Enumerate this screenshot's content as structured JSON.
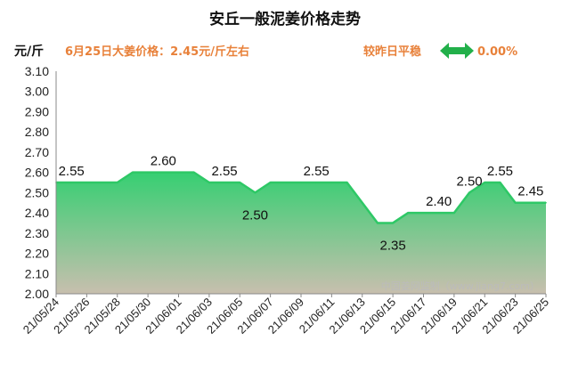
{
  "header": {
    "title": "安丘一般泥姜价格走势",
    "unit": "元/斤",
    "price_note": "6月25日大姜价格：2.45元/斤左右",
    "compare_label": "较昨日平稳",
    "compare_value": "0.00%",
    "arrow_icon": "left-right-arrow-icon"
  },
  "watermark": "中国姜网监制（www.jiang7.com）",
  "colors": {
    "line": "#2ec866",
    "fill_top": "#36cf72",
    "fill_bottom": "#c8bfae",
    "accent": "#e8813a",
    "arrow": "#22b04a"
  },
  "chart_data": {
    "type": "area",
    "x_dates": [
      "21/05/24",
      "21/05/25",
      "21/05/26",
      "21/05/27",
      "21/05/28",
      "21/05/29",
      "21/05/30",
      "21/05/31",
      "21/06/01",
      "21/06/02",
      "21/06/03",
      "21/06/04",
      "21/06/05",
      "21/06/06",
      "21/06/07",
      "21/06/08",
      "21/06/09",
      "21/06/10",
      "21/06/11",
      "21/06/12",
      "21/06/13",
      "21/06/14",
      "21/06/15",
      "21/06/16",
      "21/06/17",
      "21/06/18",
      "21/06/19",
      "21/06/20",
      "21/06/21",
      "21/06/22",
      "21/06/23",
      "21/06/24",
      "21/06/25"
    ],
    "values": [
      2.55,
      2.55,
      2.55,
      2.55,
      2.55,
      2.6,
      2.6,
      2.6,
      2.6,
      2.6,
      2.55,
      2.55,
      2.55,
      2.5,
      2.55,
      2.55,
      2.55,
      2.55,
      2.55,
      2.55,
      2.45,
      2.35,
      2.35,
      2.4,
      2.4,
      2.4,
      2.4,
      2.5,
      2.55,
      2.55,
      2.45,
      2.45,
      2.45
    ],
    "x_tick_labels": [
      "21/05/24",
      "21/05/26",
      "21/05/28",
      "21/05/30",
      "21/06/01",
      "21/06/03",
      "21/06/05",
      "21/06/07",
      "21/06/09",
      "21/06/11",
      "21/06/13",
      "21/06/15",
      "21/06/17",
      "21/06/19",
      "21/06/21",
      "21/06/23",
      "21/06/25"
    ],
    "y_ticks": [
      "2.00",
      "2.10",
      "2.20",
      "2.30",
      "2.40",
      "2.50",
      "2.60",
      "2.70",
      "2.80",
      "2.90",
      "3.00",
      "3.10"
    ],
    "ylim": [
      2.0,
      3.1
    ],
    "data_labels": [
      {
        "index": 1,
        "text": "2.55",
        "pos": "above"
      },
      {
        "index": 7,
        "text": "2.60",
        "pos": "above"
      },
      {
        "index": 11,
        "text": "2.55",
        "pos": "above"
      },
      {
        "index": 13,
        "text": "2.50",
        "pos": "below"
      },
      {
        "index": 17,
        "text": "2.55",
        "pos": "above"
      },
      {
        "index": 22,
        "text": "2.35",
        "pos": "below"
      },
      {
        "index": 25,
        "text": "2.40",
        "pos": "above"
      },
      {
        "index": 27,
        "text": "2.50",
        "pos": "above"
      },
      {
        "index": 29,
        "text": "2.55",
        "pos": "above"
      },
      {
        "index": 31,
        "text": "2.45",
        "pos": "above"
      }
    ],
    "grid": false
  }
}
